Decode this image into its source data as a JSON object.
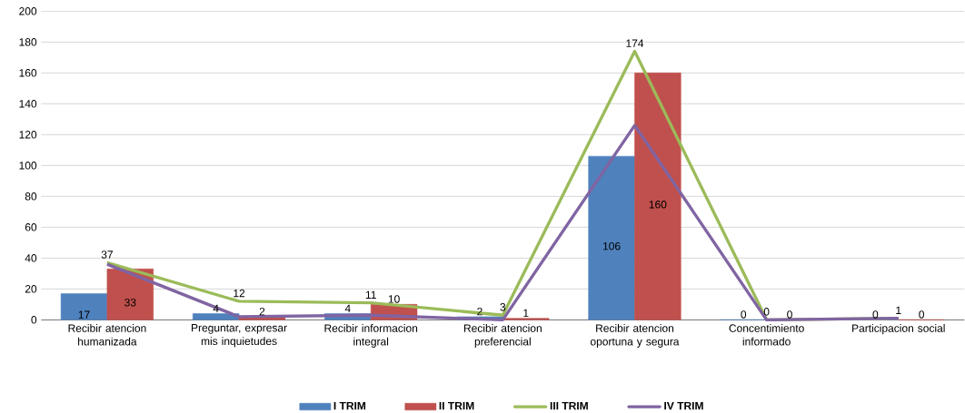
{
  "chart_data": {
    "type": "bar",
    "categories": [
      "Recibir atencion humanizada",
      "Preguntar, expresar mis inquietudes",
      "Recibir informacion integral",
      "Recibir atencion preferencial",
      "Recibir atencion oportuna y segura",
      "Concentimiento informado",
      "Participacion social"
    ],
    "series": [
      {
        "name": "I TRIM",
        "color": "#4f81bd",
        "values": [
          17,
          4,
          4,
          2,
          106,
          0,
          0
        ],
        "value_labels": [
          "17",
          "4",
          "4",
          "2",
          "106",
          "0",
          "0"
        ]
      },
      {
        "name": "II TRIM",
        "color": "#c0504d",
        "values": [
          33,
          2,
          10,
          1,
          160,
          0,
          0
        ],
        "value_labels": [
          "33",
          "2",
          "10",
          "1",
          "160",
          "0",
          "0"
        ]
      },
      {
        "name": "III TRIM",
        "type": "line",
        "color": "#9bbb59",
        "values": [
          37,
          12,
          11,
          3,
          174,
          0,
          1
        ],
        "value_labels": [
          "37",
          "12",
          "11",
          "3",
          "174",
          "0",
          "1"
        ]
      },
      {
        "name": "IV TRIM",
        "type": "line",
        "color": "#8064a2",
        "values": [
          36,
          2,
          3,
          0,
          126,
          0,
          1
        ]
      }
    ],
    "ylim": [
      0,
      200
    ],
    "yticks": [
      0,
      20,
      40,
      60,
      80,
      100,
      120,
      140,
      160,
      180,
      200
    ],
    "grid": "y",
    "legend": "bottom",
    "marker": "none",
    "line_style": "solid"
  }
}
